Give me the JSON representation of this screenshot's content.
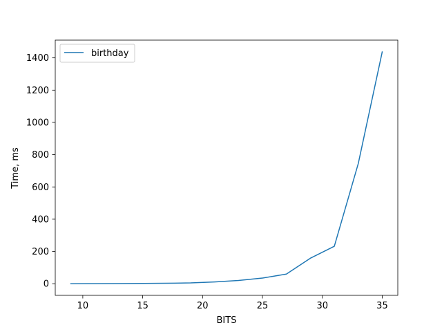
{
  "chart_data": {
    "type": "line",
    "xlabel": "BITS",
    "ylabel": "Time, ms",
    "xlim": [
      7.7,
      36.3
    ],
    "ylim": [
      -72,
      1510
    ],
    "xticks": [
      10,
      15,
      20,
      25,
      30,
      35
    ],
    "yticks": [
      0,
      200,
      400,
      600,
      800,
      1000,
      1200,
      1400
    ],
    "grid": false,
    "legend_position": "top-left",
    "series": [
      {
        "name": "birthday",
        "color": "#1f77b4",
        "x": [
          9,
          11,
          13,
          15,
          17,
          19,
          21,
          23,
          25,
          27,
          29,
          31,
          33,
          35
        ],
        "y": [
          0,
          0.5,
          1,
          2,
          3,
          5,
          11,
          20,
          35,
          60,
          158,
          232,
          745,
          1437
        ]
      }
    ]
  }
}
